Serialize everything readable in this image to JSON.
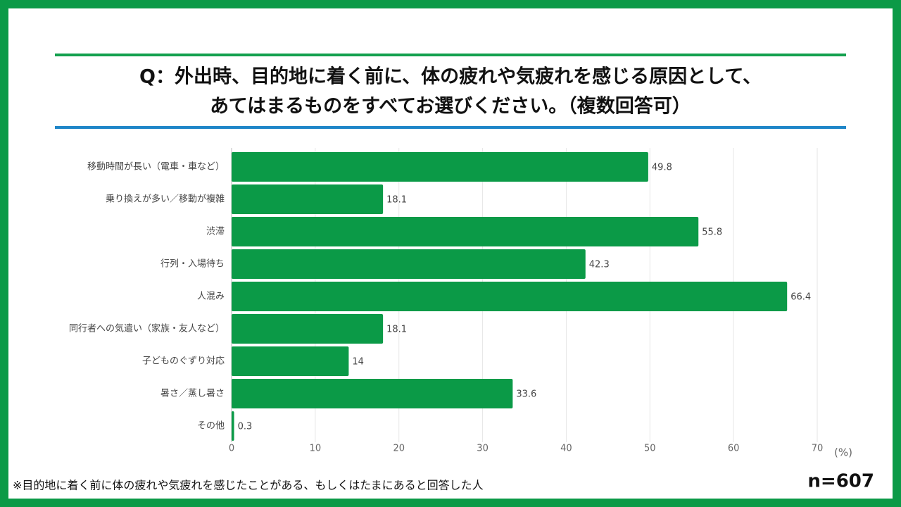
{
  "chart_data": {
    "type": "bar",
    "orientation": "horizontal",
    "title": [
      "Q：外出時、目的地に着く前に、体の疲れや気疲れを感じる原因として、",
      "あてはまるものをすべてお選びください。（複数回答可）"
    ],
    "categories": [
      "移動時間が長い（電車・車など）",
      "乗り換えが多い／移動が複雑",
      "渋滞",
      "行列・入場待ち",
      "人混み",
      "同行者への気遣い（家族・友人など）",
      "子どものぐずり対応",
      "暑さ／蒸し暑さ",
      "その他"
    ],
    "values": [
      49.8,
      18.1,
      55.8,
      42.3,
      66.4,
      18.1,
      14,
      33.6,
      0.3
    ],
    "color": "#0b9a47",
    "x_label": "(%)",
    "xlim": [
      0,
      70
    ],
    "xticks": [
      0,
      10,
      20,
      30,
      40,
      50,
      60,
      70
    ],
    "grid": true,
    "note": "※目的地に着く前に体の疲れや気疲れを感じたことがある、もしくはたまにあると回答した人",
    "sample_size": "n=607"
  }
}
